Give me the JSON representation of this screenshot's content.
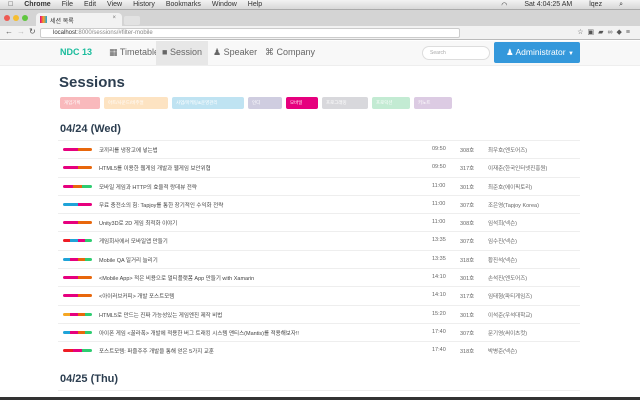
{
  "os_menu": {
    "app": "Chrome",
    "items": [
      "File",
      "Edit",
      "View",
      "History",
      "Bookmarks",
      "Window",
      "Help"
    ],
    "clock": "Sat 4:04:25 AM",
    "user": "lqez"
  },
  "browser": {
    "tab_title": "세션 목록",
    "url_host": "localhost",
    "url_path": ":8000/sessions/#filter-mobile"
  },
  "navbar": {
    "brand": "NDC 13",
    "links": [
      {
        "label": "Timetable",
        "icon": "calendar-icon"
      },
      {
        "label": "Session",
        "icon": "video-camera-icon",
        "active": true
      },
      {
        "label": "Speaker",
        "icon": "user-icon"
      },
      {
        "label": "Company",
        "icon": "command-icon"
      }
    ],
    "search_placeholder": "Search",
    "user_button": "Administrator"
  },
  "page_title": "Sessions",
  "filters": [
    {
      "label": "게임기획",
      "color": "#f9b9bc",
      "active": false
    },
    {
      "label": "아트/사운드/비주얼",
      "color": "#fde3c2",
      "active": false
    },
    {
      "label": "사업/마케팅&운영관리",
      "color": "#bfe3f2",
      "active": false
    },
    {
      "label": "인디",
      "color": "#cfcde0",
      "active": false
    },
    {
      "label": "모바일",
      "color": "#e6007e",
      "active": true
    },
    {
      "label": "프로그래밍",
      "color": "#d8d8dc",
      "active": false
    },
    {
      "label": "프로덕션",
      "color": "#c3ebd3",
      "active": false
    },
    {
      "label": "키노트",
      "color": "#dccbe3",
      "active": false
    }
  ],
  "category_colors": {
    "game_design": "#ee1c25",
    "art": "#f5a623",
    "business": "#1fa3d8",
    "mobile": "#e6007e",
    "programming": "#e8670c",
    "production": "#2ecc71"
  },
  "days": [
    {
      "date": "04/24 (Wed)",
      "sessions": [
        {
          "title": "코끼리를 냉장고에 넣는법",
          "time": "09:50",
          "room": "308호",
          "speaker": "최우호(엔도어즈)",
          "tags": [
            "mobile",
            "programming"
          ]
        },
        {
          "title": "HTML5를 이용한 웹게임 개발과 웹게임 보안위협",
          "time": "09:50",
          "room": "317호",
          "speaker": "이재춘(한국인터넷진흥원)",
          "tags": [
            "mobile",
            "programming"
          ]
        },
        {
          "title": "모바일 게임과 HTTP의 효율적 랑데뷰 전략",
          "time": "11:00",
          "room": "301호",
          "speaker": "최준호(에이픽토리)",
          "tags": [
            "mobile",
            "programming",
            "production"
          ]
        },
        {
          "title": "무료 충전소의 힘: Tapjoy를 통한 장기적인 수익화 전략",
          "time": "11:00",
          "room": "307호",
          "speaker": "조은영(Tapjoy Korea)",
          "tags": [
            "business",
            "mobile"
          ]
        },
        {
          "title": "Unity3D로 2D 게임 최적화 이야기",
          "time": "11:00",
          "room": "308호",
          "speaker": "임석희(넥슨)",
          "tags": [
            "mobile",
            "programming"
          ]
        },
        {
          "title": "게임회사에서 모바일앱 만들기",
          "time": "13:35",
          "room": "307호",
          "speaker": "임수진(넥슨)",
          "tags": [
            "game_design",
            "business",
            "mobile",
            "production"
          ]
        },
        {
          "title": "Mobile QA 일거리 늘리기",
          "time": "13:35",
          "room": "318호",
          "speaker": "황진석(넥슨)",
          "tags": [
            "business",
            "mobile",
            "programming",
            "production"
          ]
        },
        {
          "title": "<Mobile App> 적은 비용으로 멀티플랫폼 App 만들기 with Xamarin",
          "time": "14:10",
          "room": "301호",
          "speaker": "손석진(엔도어즈)",
          "tags": [
            "mobile",
            "programming"
          ]
        },
        {
          "title": "<아이러브커피> 개발 포스트모템",
          "time": "14:10",
          "room": "317호",
          "speaker": "임태형(파티게임즈)",
          "tags": [
            "mobile",
            "programming"
          ]
        },
        {
          "title": "HTML5로 만드는 진짜 가능성있는 게임엔진 제작 비법",
          "time": "15:20",
          "room": "301호",
          "speaker": "이석준(우석대학교)",
          "tags": [
            "art",
            "mobile",
            "programming",
            "production"
          ]
        },
        {
          "title": "아이폰 게임 <꿀라폭> 개발에 적용한 버그 트래킹 시스템 맨티스(Mantis)를 적용해보자!!",
          "time": "17:40",
          "room": "307호",
          "speaker": "문기영(써이츠컷)",
          "tags": [
            "business",
            "mobile",
            "programming",
            "production"
          ]
        },
        {
          "title": "포스트모템: 퍼즐주주 개발을 통해 얻은 5가지 교훈",
          "time": "17:40",
          "room": "318호",
          "speaker": "박병준(넥슨)",
          "tags": [
            "game_design",
            "mobile",
            "production"
          ]
        }
      ]
    },
    {
      "date": "04/25 (Thu)",
      "sessions": []
    }
  ]
}
